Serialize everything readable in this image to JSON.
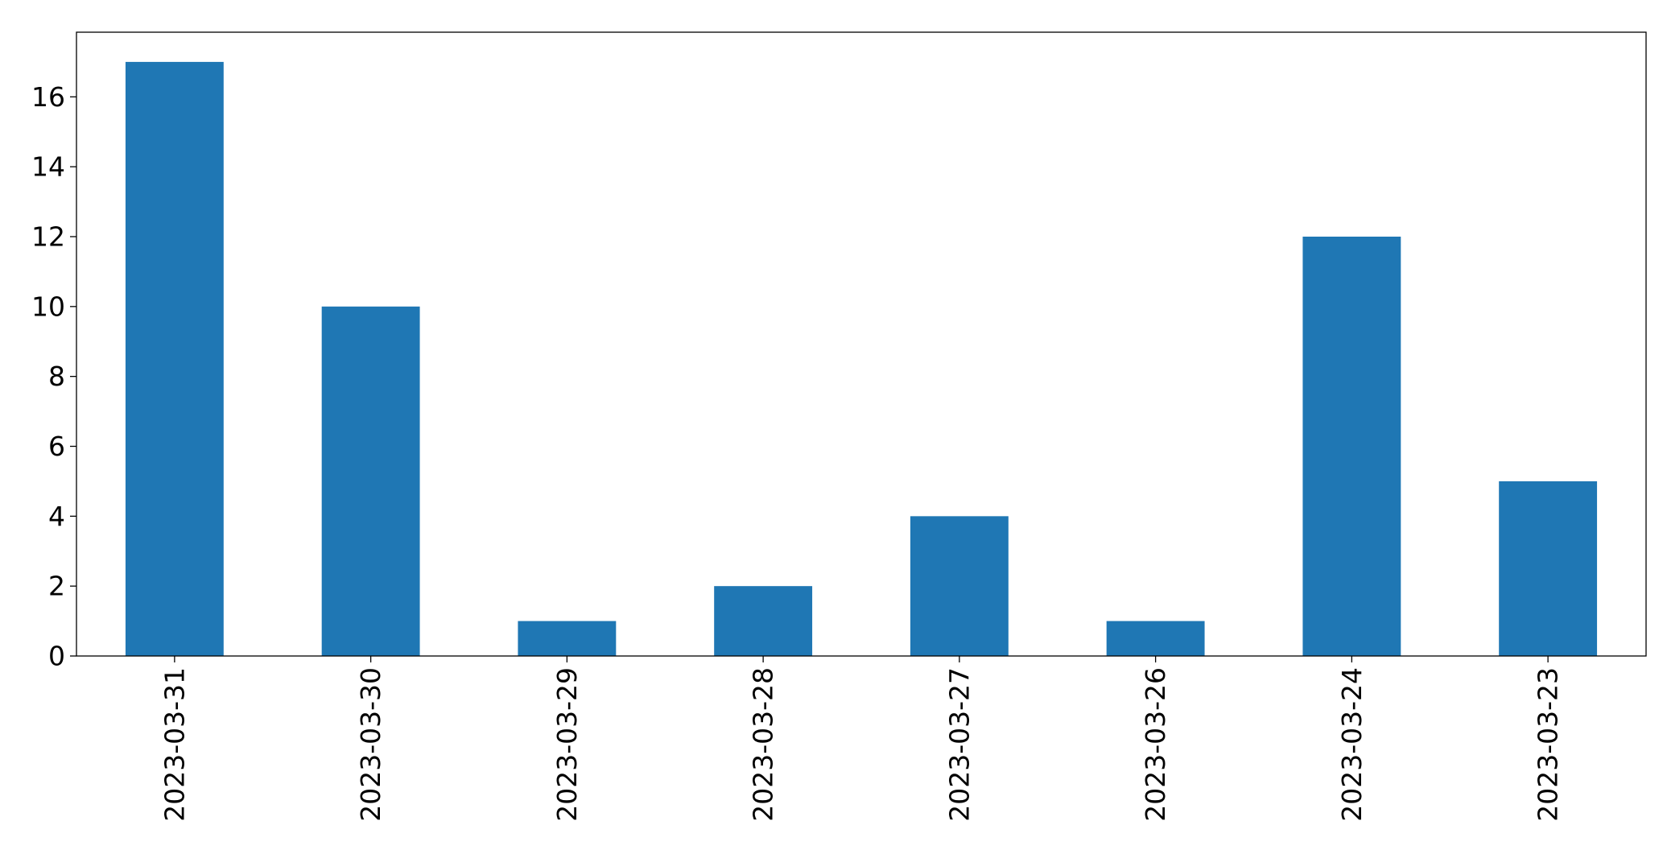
{
  "chart_data": {
    "type": "bar",
    "categories": [
      "2023-03-31",
      "2023-03-30",
      "2023-03-29",
      "2023-03-28",
      "2023-03-27",
      "2023-03-26",
      "2023-03-24",
      "2023-03-23"
    ],
    "values": [
      17,
      10,
      1,
      2,
      4,
      1,
      12,
      5
    ],
    "yticks": [
      0,
      2,
      4,
      6,
      8,
      10,
      12,
      14,
      16
    ],
    "ylim": [
      0,
      17.85
    ],
    "title": "",
    "xlabel": "",
    "ylabel": "",
    "bar_color": "#1f77b4",
    "grid": false,
    "legend": "none",
    "x_tick_rotation": "vertical"
  }
}
